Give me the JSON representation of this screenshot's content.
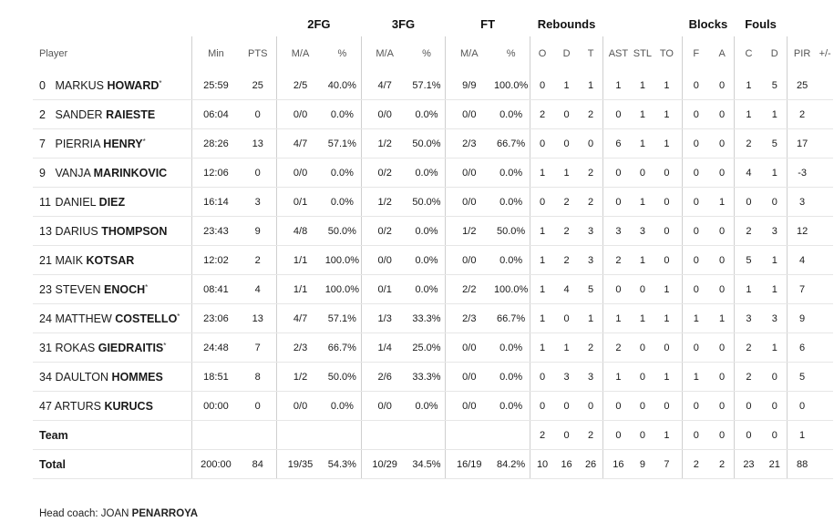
{
  "group_headers": {
    "fg2": "2FG",
    "fg3": "3FG",
    "ft": "FT",
    "rebounds": "Rebounds",
    "blocks": "Blocks",
    "fouls": "Fouls"
  },
  "columns": [
    "Player",
    "Min",
    "PTS",
    "M/A",
    "%",
    "M/A",
    "%",
    "M/A",
    "%",
    "O",
    "D",
    "T",
    "AST",
    "STL",
    "TO",
    "F",
    "A",
    "C",
    "D",
    "PIR",
    "+/-"
  ],
  "players": [
    {
      "num": "0",
      "first": "MARKUS",
      "last": "HOWARD",
      "star": true,
      "min": "25:59",
      "pts": "25",
      "fg2": "2/5",
      "fg2p": "40.0%",
      "fg3": "4/7",
      "fg3p": "57.1%",
      "ft": "9/9",
      "ftp": "100.0%",
      "o": "0",
      "d": "1",
      "t": "1",
      "ast": "1",
      "stl": "1",
      "to": "1",
      "bf": "0",
      "ba": "0",
      "fc": "1",
      "fd": "5",
      "pir": "25",
      "pm": ""
    },
    {
      "num": "2",
      "first": "SANDER",
      "last": "RAIESTE",
      "star": false,
      "min": "06:04",
      "pts": "0",
      "fg2": "0/0",
      "fg2p": "0.0%",
      "fg3": "0/0",
      "fg3p": "0.0%",
      "ft": "0/0",
      "ftp": "0.0%",
      "o": "2",
      "d": "0",
      "t": "2",
      "ast": "0",
      "stl": "1",
      "to": "1",
      "bf": "0",
      "ba": "0",
      "fc": "1",
      "fd": "1",
      "pir": "2",
      "pm": ""
    },
    {
      "num": "7",
      "first": "PIERRIA",
      "last": "HENRY",
      "star": true,
      "min": "28:26",
      "pts": "13",
      "fg2": "4/7",
      "fg2p": "57.1%",
      "fg3": "1/2",
      "fg3p": "50.0%",
      "ft": "2/3",
      "ftp": "66.7%",
      "o": "0",
      "d": "0",
      "t": "0",
      "ast": "6",
      "stl": "1",
      "to": "1",
      "bf": "0",
      "ba": "0",
      "fc": "2",
      "fd": "5",
      "pir": "17",
      "pm": ""
    },
    {
      "num": "9",
      "first": "VANJA",
      "last": "MARINKOVIC",
      "star": false,
      "min": "12:06",
      "pts": "0",
      "fg2": "0/0",
      "fg2p": "0.0%",
      "fg3": "0/2",
      "fg3p": "0.0%",
      "ft": "0/0",
      "ftp": "0.0%",
      "o": "1",
      "d": "1",
      "t": "2",
      "ast": "0",
      "stl": "0",
      "to": "0",
      "bf": "0",
      "ba": "0",
      "fc": "4",
      "fd": "1",
      "pir": "-3",
      "pm": ""
    },
    {
      "num": "11",
      "first": "DANIEL",
      "last": "DIEZ",
      "star": false,
      "min": "16:14",
      "pts": "3",
      "fg2": "0/1",
      "fg2p": "0.0%",
      "fg3": "1/2",
      "fg3p": "50.0%",
      "ft": "0/0",
      "ftp": "0.0%",
      "o": "0",
      "d": "2",
      "t": "2",
      "ast": "0",
      "stl": "1",
      "to": "0",
      "bf": "0",
      "ba": "1",
      "fc": "0",
      "fd": "0",
      "pir": "3",
      "pm": ""
    },
    {
      "num": "13",
      "first": "DARIUS",
      "last": "THOMPSON",
      "star": false,
      "min": "23:43",
      "pts": "9",
      "fg2": "4/8",
      "fg2p": "50.0%",
      "fg3": "0/2",
      "fg3p": "0.0%",
      "ft": "1/2",
      "ftp": "50.0%",
      "o": "1",
      "d": "2",
      "t": "3",
      "ast": "3",
      "stl": "3",
      "to": "0",
      "bf": "0",
      "ba": "0",
      "fc": "2",
      "fd": "3",
      "pir": "12",
      "pm": ""
    },
    {
      "num": "21",
      "first": "MAIK",
      "last": "KOTSAR",
      "star": false,
      "min": "12:02",
      "pts": "2",
      "fg2": "1/1",
      "fg2p": "100.0%",
      "fg3": "0/0",
      "fg3p": "0.0%",
      "ft": "0/0",
      "ftp": "0.0%",
      "o": "1",
      "d": "2",
      "t": "3",
      "ast": "2",
      "stl": "1",
      "to": "0",
      "bf": "0",
      "ba": "0",
      "fc": "5",
      "fd": "1",
      "pir": "4",
      "pm": ""
    },
    {
      "num": "23",
      "first": "STEVEN",
      "last": "ENOCH",
      "star": true,
      "min": "08:41",
      "pts": "4",
      "fg2": "1/1",
      "fg2p": "100.0%",
      "fg3": "0/1",
      "fg3p": "0.0%",
      "ft": "2/2",
      "ftp": "100.0%",
      "o": "1",
      "d": "4",
      "t": "5",
      "ast": "0",
      "stl": "0",
      "to": "1",
      "bf": "0",
      "ba": "0",
      "fc": "1",
      "fd": "1",
      "pir": "7",
      "pm": ""
    },
    {
      "num": "24",
      "first": "MATTHEW",
      "last": "COSTELLO",
      "star": true,
      "min": "23:06",
      "pts": "13",
      "fg2": "4/7",
      "fg2p": "57.1%",
      "fg3": "1/3",
      "fg3p": "33.3%",
      "ft": "2/3",
      "ftp": "66.7%",
      "o": "1",
      "d": "0",
      "t": "1",
      "ast": "1",
      "stl": "1",
      "to": "1",
      "bf": "1",
      "ba": "1",
      "fc": "3",
      "fd": "3",
      "pir": "9",
      "pm": ""
    },
    {
      "num": "31",
      "first": "ROKAS",
      "last": "GIEDRAITIS",
      "star": true,
      "min": "24:48",
      "pts": "7",
      "fg2": "2/3",
      "fg2p": "66.7%",
      "fg3": "1/4",
      "fg3p": "25.0%",
      "ft": "0/0",
      "ftp": "0.0%",
      "o": "1",
      "d": "1",
      "t": "2",
      "ast": "2",
      "stl": "0",
      "to": "0",
      "bf": "0",
      "ba": "0",
      "fc": "2",
      "fd": "1",
      "pir": "6",
      "pm": ""
    },
    {
      "num": "34",
      "first": "DAULTON",
      "last": "HOMMES",
      "star": false,
      "min": "18:51",
      "pts": "8",
      "fg2": "1/2",
      "fg2p": "50.0%",
      "fg3": "2/6",
      "fg3p": "33.3%",
      "ft": "0/0",
      "ftp": "0.0%",
      "o": "0",
      "d": "3",
      "t": "3",
      "ast": "1",
      "stl": "0",
      "to": "1",
      "bf": "1",
      "ba": "0",
      "fc": "2",
      "fd": "0",
      "pir": "5",
      "pm": ""
    },
    {
      "num": "47",
      "first": "ARTURS",
      "last": "KURUCS",
      "star": false,
      "min": "00:00",
      "pts": "0",
      "fg2": "0/0",
      "fg2p": "0.0%",
      "fg3": "0/0",
      "fg3p": "0.0%",
      "ft": "0/0",
      "ftp": "0.0%",
      "o": "0",
      "d": "0",
      "t": "0",
      "ast": "0",
      "stl": "0",
      "to": "0",
      "bf": "0",
      "ba": "0",
      "fc": "0",
      "fd": "0",
      "pir": "0",
      "pm": ""
    }
  ],
  "team": {
    "label": "Team",
    "min": "",
    "pts": "",
    "fg2": "",
    "fg2p": "",
    "fg3": "",
    "fg3p": "",
    "ft": "",
    "ftp": "",
    "o": "2",
    "d": "0",
    "t": "2",
    "ast": "0",
    "stl": "0",
    "to": "1",
    "bf": "0",
    "ba": "0",
    "fc": "0",
    "fd": "0",
    "pir": "1",
    "pm": ""
  },
  "total": {
    "label": "Total",
    "min": "200:00",
    "pts": "84",
    "fg2": "19/35",
    "fg2p": "54.3%",
    "fg3": "10/29",
    "fg3p": "34.5%",
    "ft": "16/19",
    "ftp": "84.2%",
    "o": "10",
    "d": "16",
    "t": "26",
    "ast": "16",
    "stl": "9",
    "to": "7",
    "bf": "2",
    "ba": "2",
    "fc": "23",
    "fd": "21",
    "pir": "88",
    "pm": ""
  },
  "coach": {
    "label": "Head coach:",
    "first": "JOAN",
    "last": "PENARROYA"
  }
}
